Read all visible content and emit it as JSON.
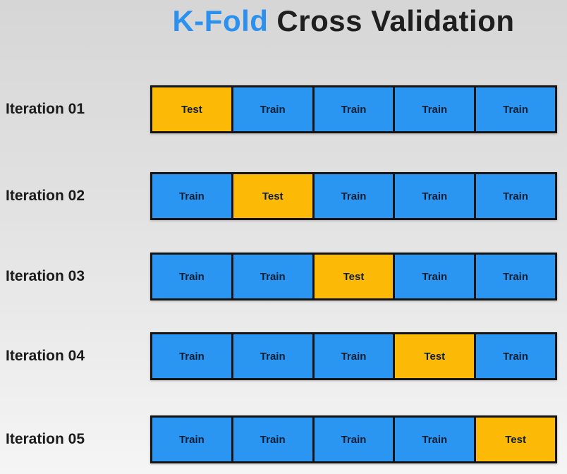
{
  "title": {
    "highlight": "K-Fold",
    "rest": "Cross Validation"
  },
  "colors": {
    "test": "#FCB905",
    "train": "#2B95F2",
    "border": "#141414",
    "title_highlight": "#2B90EE",
    "title_text": "#1F1F1F",
    "label_text": "#1B1B1B",
    "cell_text": "#0E1E33",
    "background_top": "#D6D6D6",
    "background_bottom": "#F5F5F5"
  },
  "rows": [
    {
      "label": "Iteration 01",
      "cells": [
        "Test",
        "Train",
        "Train",
        "Train",
        "Train"
      ]
    },
    {
      "label": "Iteration 02",
      "cells": [
        "Train",
        "Test",
        "Train",
        "Train",
        "Train"
      ]
    },
    {
      "label": "Iteration 03",
      "cells": [
        "Train",
        "Train",
        "Test",
        "Train",
        "Train"
      ]
    },
    {
      "label": "Iteration 04",
      "cells": [
        "Train",
        "Train",
        "Train",
        "Test",
        "Train"
      ]
    },
    {
      "label": "Iteration 05",
      "cells": [
        "Train",
        "Train",
        "Train",
        "Train",
        "Test"
      ]
    }
  ]
}
